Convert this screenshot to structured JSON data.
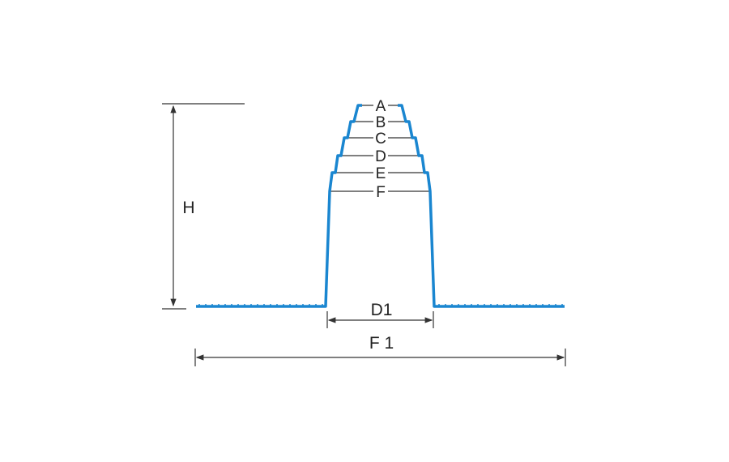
{
  "diagram": {
    "level_labels": [
      "A",
      "B",
      "C",
      "D",
      "E",
      "F"
    ],
    "height_label": "H",
    "inner_width_label": "D1",
    "flange_width_label": "F 1",
    "colors": {
      "profile": "#1a86d0",
      "dimension": "#333333"
    }
  }
}
